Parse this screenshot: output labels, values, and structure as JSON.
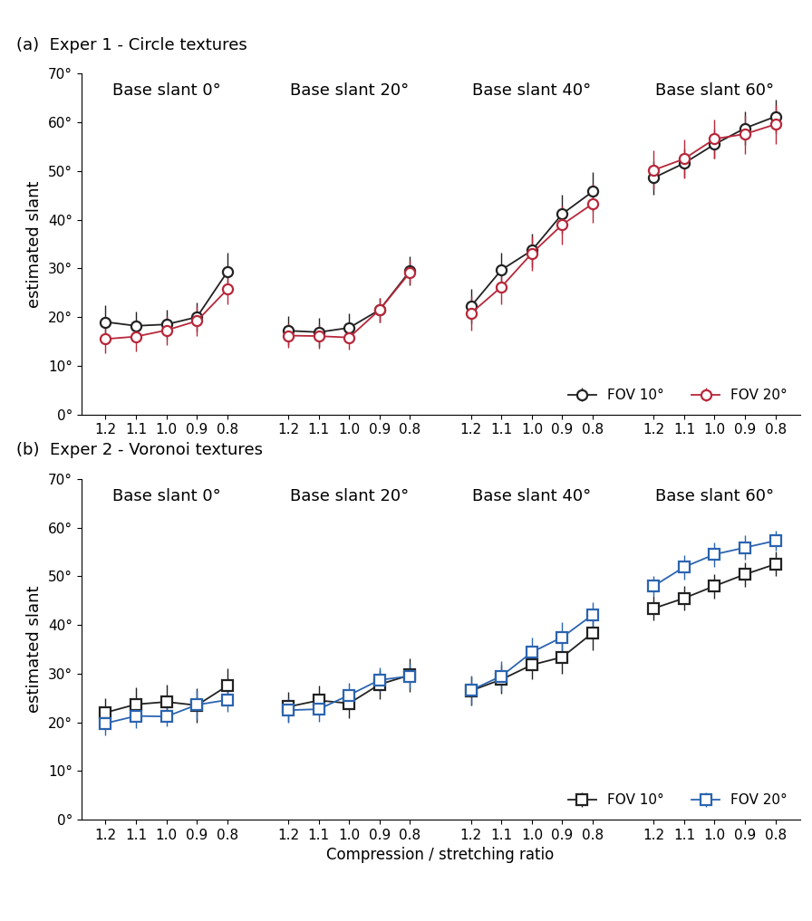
{
  "chart_data": [
    {
      "type": "line",
      "title": "(a)  Exper 1 - Circle textures",
      "ylabel": "estimated slant",
      "categories": [
        "1.2",
        "1.1",
        "1.0",
        "0.9",
        "0.8"
      ],
      "ylim": [
        0,
        70
      ],
      "yticks": [
        {
          "value": 0,
          "label": "0°"
        },
        {
          "value": 10,
          "label": "10°"
        },
        {
          "value": 20,
          "label": "20°"
        },
        {
          "value": 30,
          "label": "30°"
        },
        {
          "value": 40,
          "label": "40°"
        },
        {
          "value": 50,
          "label": "50°"
        },
        {
          "value": 60,
          "label": "60°"
        },
        {
          "value": 70,
          "label": "70°"
        }
      ],
      "legend": "lower right",
      "panels": [
        {
          "title": "Base slant 0°",
          "series": [
            {
              "name": "FOV 10°",
              "color": "#222222",
              "marker": "o",
              "values": [
                19,
                18.2,
                18.5,
                20,
                29.3
              ],
              "errors": [
                3.5,
                3,
                3,
                3,
                4
              ]
            },
            {
              "name": "FOV 20°",
              "color": "#b8273a",
              "marker": "o",
              "values": [
                15.5,
                16,
                17.3,
                19.2,
                25.7
              ],
              "errors": [
                3,
                3,
                3,
                3,
                3
              ]
            }
          ]
        },
        {
          "title": "Base slant 20°",
          "series": [
            {
              "name": "FOV 10°",
              "color": "#222222",
              "marker": "o",
              "values": [
                17.2,
                16.9,
                17.8,
                21.5,
                29.5
              ],
              "errors": [
                3,
                3,
                3,
                2.5,
                3
              ]
            },
            {
              "name": "FOV 20°",
              "color": "#b8273a",
              "marker": "o",
              "values": [
                16.2,
                16.1,
                15.8,
                21.5,
                29.2
              ],
              "errors": [
                2.5,
                2.5,
                2.5,
                2.5,
                2.5
              ]
            }
          ]
        },
        {
          "title": "Base slant 40°",
          "series": [
            {
              "name": "FOV 10°",
              "color": "#222222",
              "marker": "o",
              "values": [
                22.2,
                29.7,
                33.7,
                41.2,
                45.8
              ],
              "errors": [
                3.5,
                3.5,
                3.5,
                4,
                4
              ]
            },
            {
              "name": "FOV 20°",
              "color": "#b8273a",
              "marker": "o",
              "values": [
                20.8,
                26.2,
                33.1,
                39,
                43.3
              ],
              "errors": [
                3.5,
                3.5,
                3.5,
                4,
                4
              ]
            }
          ]
        },
        {
          "title": "Base slant 60°",
          "series": [
            {
              "name": "FOV 10°",
              "color": "#222222",
              "marker": "o",
              "values": [
                48.6,
                51.6,
                55.5,
                58.8,
                61.2
              ],
              "errors": [
                3.5,
                3,
                3,
                3.5,
                3.5
              ]
            },
            {
              "name": "FOV 20°",
              "color": "#b8273a",
              "marker": "o",
              "values": [
                50.2,
                52.5,
                56.6,
                57.6,
                59.6
              ],
              "errors": [
                4,
                4,
                4,
                4,
                4
              ]
            }
          ]
        }
      ]
    },
    {
      "type": "line",
      "title": "(b)  Exper 2 - Voronoi textures",
      "ylabel": "estimated slant",
      "xlabel": "Compression / stretching ratio",
      "categories": [
        "1.2",
        "1.1",
        "1.0",
        "0.9",
        "0.8"
      ],
      "ylim": [
        0,
        70
      ],
      "yticks": [
        {
          "value": 0,
          "label": "0°"
        },
        {
          "value": 10,
          "label": "10°"
        },
        {
          "value": 20,
          "label": "20°"
        },
        {
          "value": 30,
          "label": "30°"
        },
        {
          "value": 40,
          "label": "40°"
        },
        {
          "value": 50,
          "label": "50°"
        },
        {
          "value": 60,
          "label": "60°"
        },
        {
          "value": 70,
          "label": "70°"
        }
      ],
      "legend": "lower right",
      "panels": [
        {
          "title": "Base slant 0°",
          "series": [
            {
              "name": "FOV 10°",
              "color": "#222222",
              "marker": "s",
              "values": [
                22,
                23.7,
                24.2,
                23.5,
                27.5
              ],
              "errors": [
                3,
                3.5,
                3.5,
                3.5,
                3.5
              ]
            },
            {
              "name": "FOV 20°",
              "color": "#2b64b0",
              "marker": "s",
              "values": [
                19.8,
                21.3,
                21.2,
                23.6,
                24.6
              ],
              "errors": [
                2.5,
                2.5,
                2,
                3,
                2.5
              ]
            }
          ]
        },
        {
          "title": "Base slant 20°",
          "series": [
            {
              "name": "FOV 10°",
              "color": "#222222",
              "marker": "s",
              "values": [
                23.2,
                24.5,
                23.9,
                27.8,
                29.7
              ],
              "errors": [
                3,
                3,
                3,
                3,
                3.5
              ]
            },
            {
              "name": "FOV 20°",
              "color": "#2b64b0",
              "marker": "s",
              "values": [
                22.5,
                22.7,
                25.6,
                28.7,
                29.5
              ],
              "errors": [
                2.5,
                2.5,
                2.5,
                2.5,
                2.5
              ]
            }
          ]
        },
        {
          "title": "Base slant 40°",
          "series": [
            {
              "name": "FOV 10°",
              "color": "#222222",
              "marker": "s",
              "values": [
                26.5,
                28.8,
                31.8,
                33.4,
                38.4
              ],
              "errors": [
                3,
                3,
                3,
                3.5,
                3.5
              ]
            },
            {
              "name": "FOV 20°",
              "color": "#2b64b0",
              "marker": "s",
              "values": [
                26.6,
                29.5,
                34.4,
                37.5,
                42.1
              ],
              "errors": [
                3,
                3,
                3,
                3,
                2.5
              ]
            }
          ]
        },
        {
          "title": "Base slant 60°",
          "series": [
            {
              "name": "FOV 10°",
              "color": "#222222",
              "marker": "s",
              "values": [
                43.4,
                45.5,
                48,
                50.4,
                52.5
              ],
              "errors": [
                2.5,
                2.5,
                2.5,
                2.5,
                2.5
              ]
            },
            {
              "name": "FOV 20°",
              "color": "#2b64b0",
              "marker": "s",
              "values": [
                48,
                51.9,
                54.5,
                55.9,
                57.3
              ],
              "errors": [
                2,
                2.5,
                2.5,
                2.5,
                2
              ]
            }
          ]
        }
      ]
    }
  ]
}
